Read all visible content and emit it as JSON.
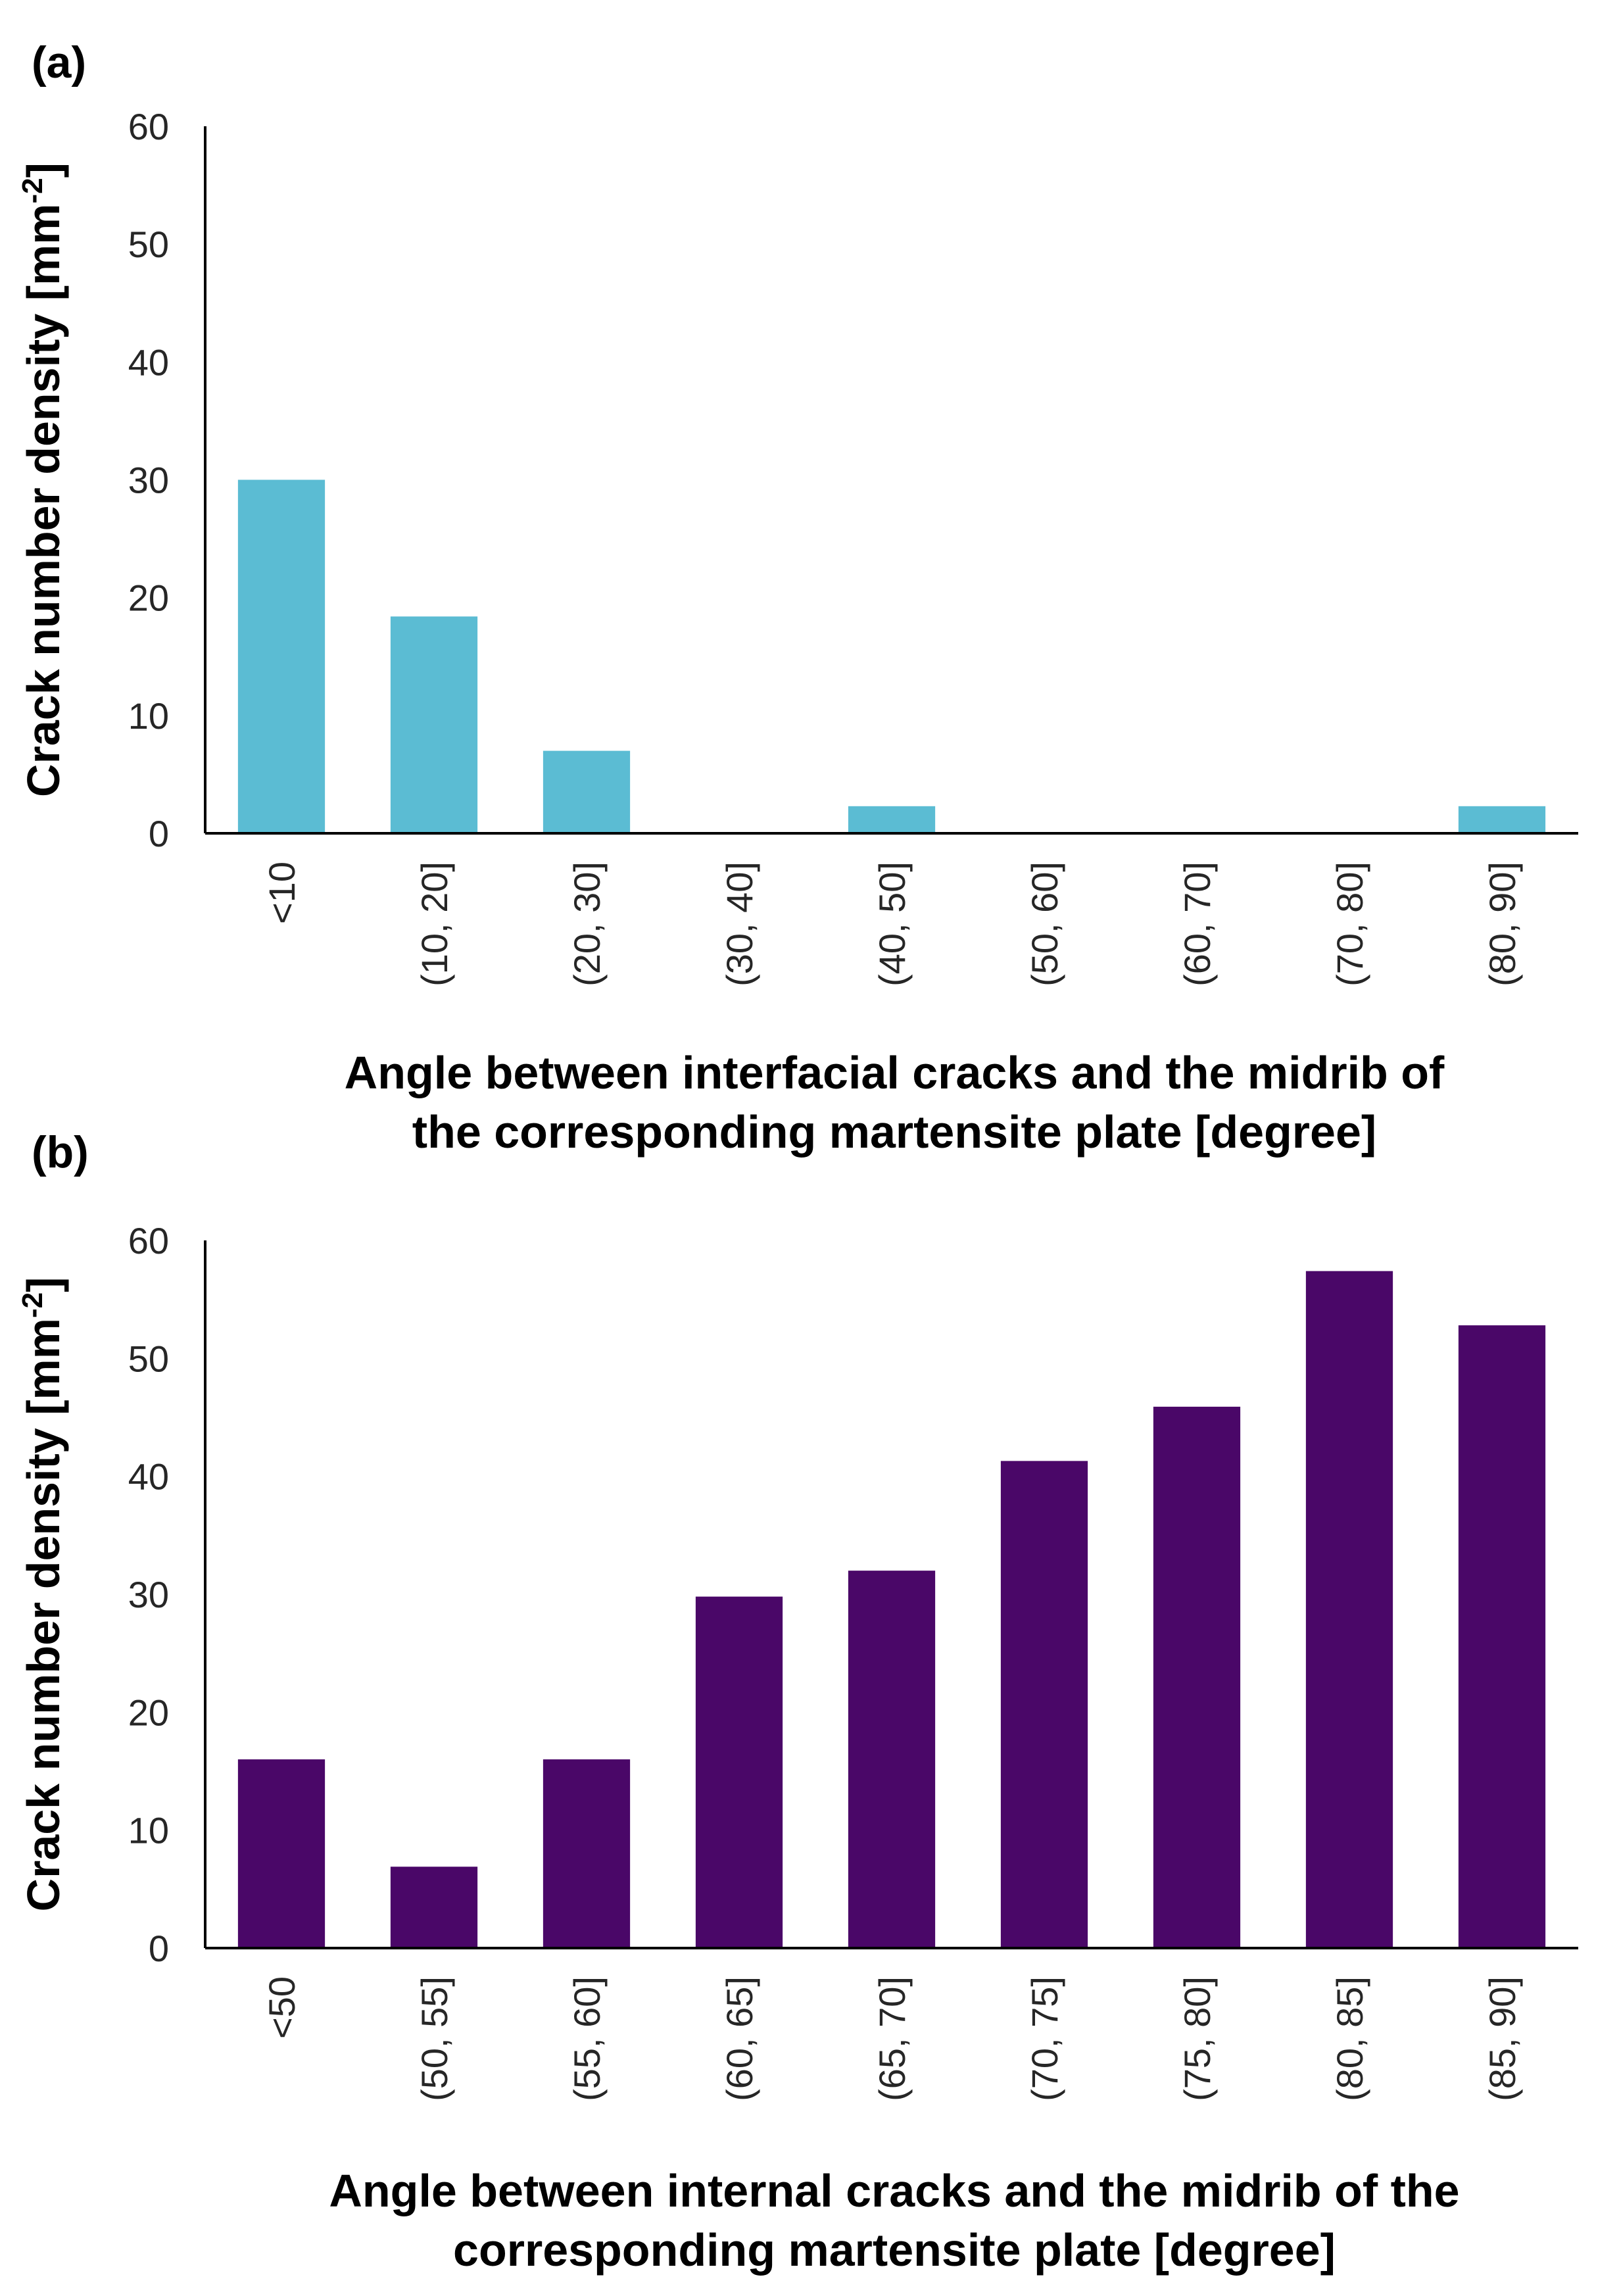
{
  "chart_data": [
    {
      "type": "bar",
      "panel_label": "(a)",
      "categories": [
        "<10",
        "(10, 20]",
        "(20, 30]",
        "(30, 40]",
        "(40, 50]",
        "(50, 60]",
        "(60, 70]",
        "(70, 80]",
        "(80, 90]"
      ],
      "values": [
        30,
        18.4,
        7,
        0,
        2.3,
        0,
        0,
        0,
        2.3
      ],
      "ylim": [
        0,
        60
      ],
      "yticks": [
        "0",
        "10",
        "20",
        "30",
        "40",
        "50",
        "60"
      ],
      "ylabel": "Crack number density [mm",
      "ylabel_sup": "-2",
      "ylabel_end": "]",
      "xlabel_lines": [
        "Angle between interfacial cracks and the midrib of",
        "the corresponding martensite plate [degree]"
      ],
      "color": "#5bbcd3",
      "grid": false
    },
    {
      "type": "bar",
      "panel_label": "(b)",
      "categories": [
        "<50",
        "(50, 55]",
        "(55, 60]",
        "(60, 65]",
        "(65, 70]",
        "(70, 75]",
        "(75, 80]",
        "(80, 85]",
        "(85, 90]"
      ],
      "values": [
        16,
        6.9,
        16,
        29.8,
        32,
        41.3,
        45.9,
        57.4,
        52.8
      ],
      "ylim": [
        0,
        60
      ],
      "yticks": [
        "0",
        "10",
        "20",
        "30",
        "40",
        "50",
        "60"
      ],
      "ylabel": "Crack number density [mm",
      "ylabel_sup": "-2",
      "ylabel_end": "]",
      "xlabel_lines": [
        "Angle between internal cracks and the midrib of the",
        "corresponding martensite plate [degree]"
      ],
      "color": "#4a0768",
      "grid": false
    }
  ]
}
